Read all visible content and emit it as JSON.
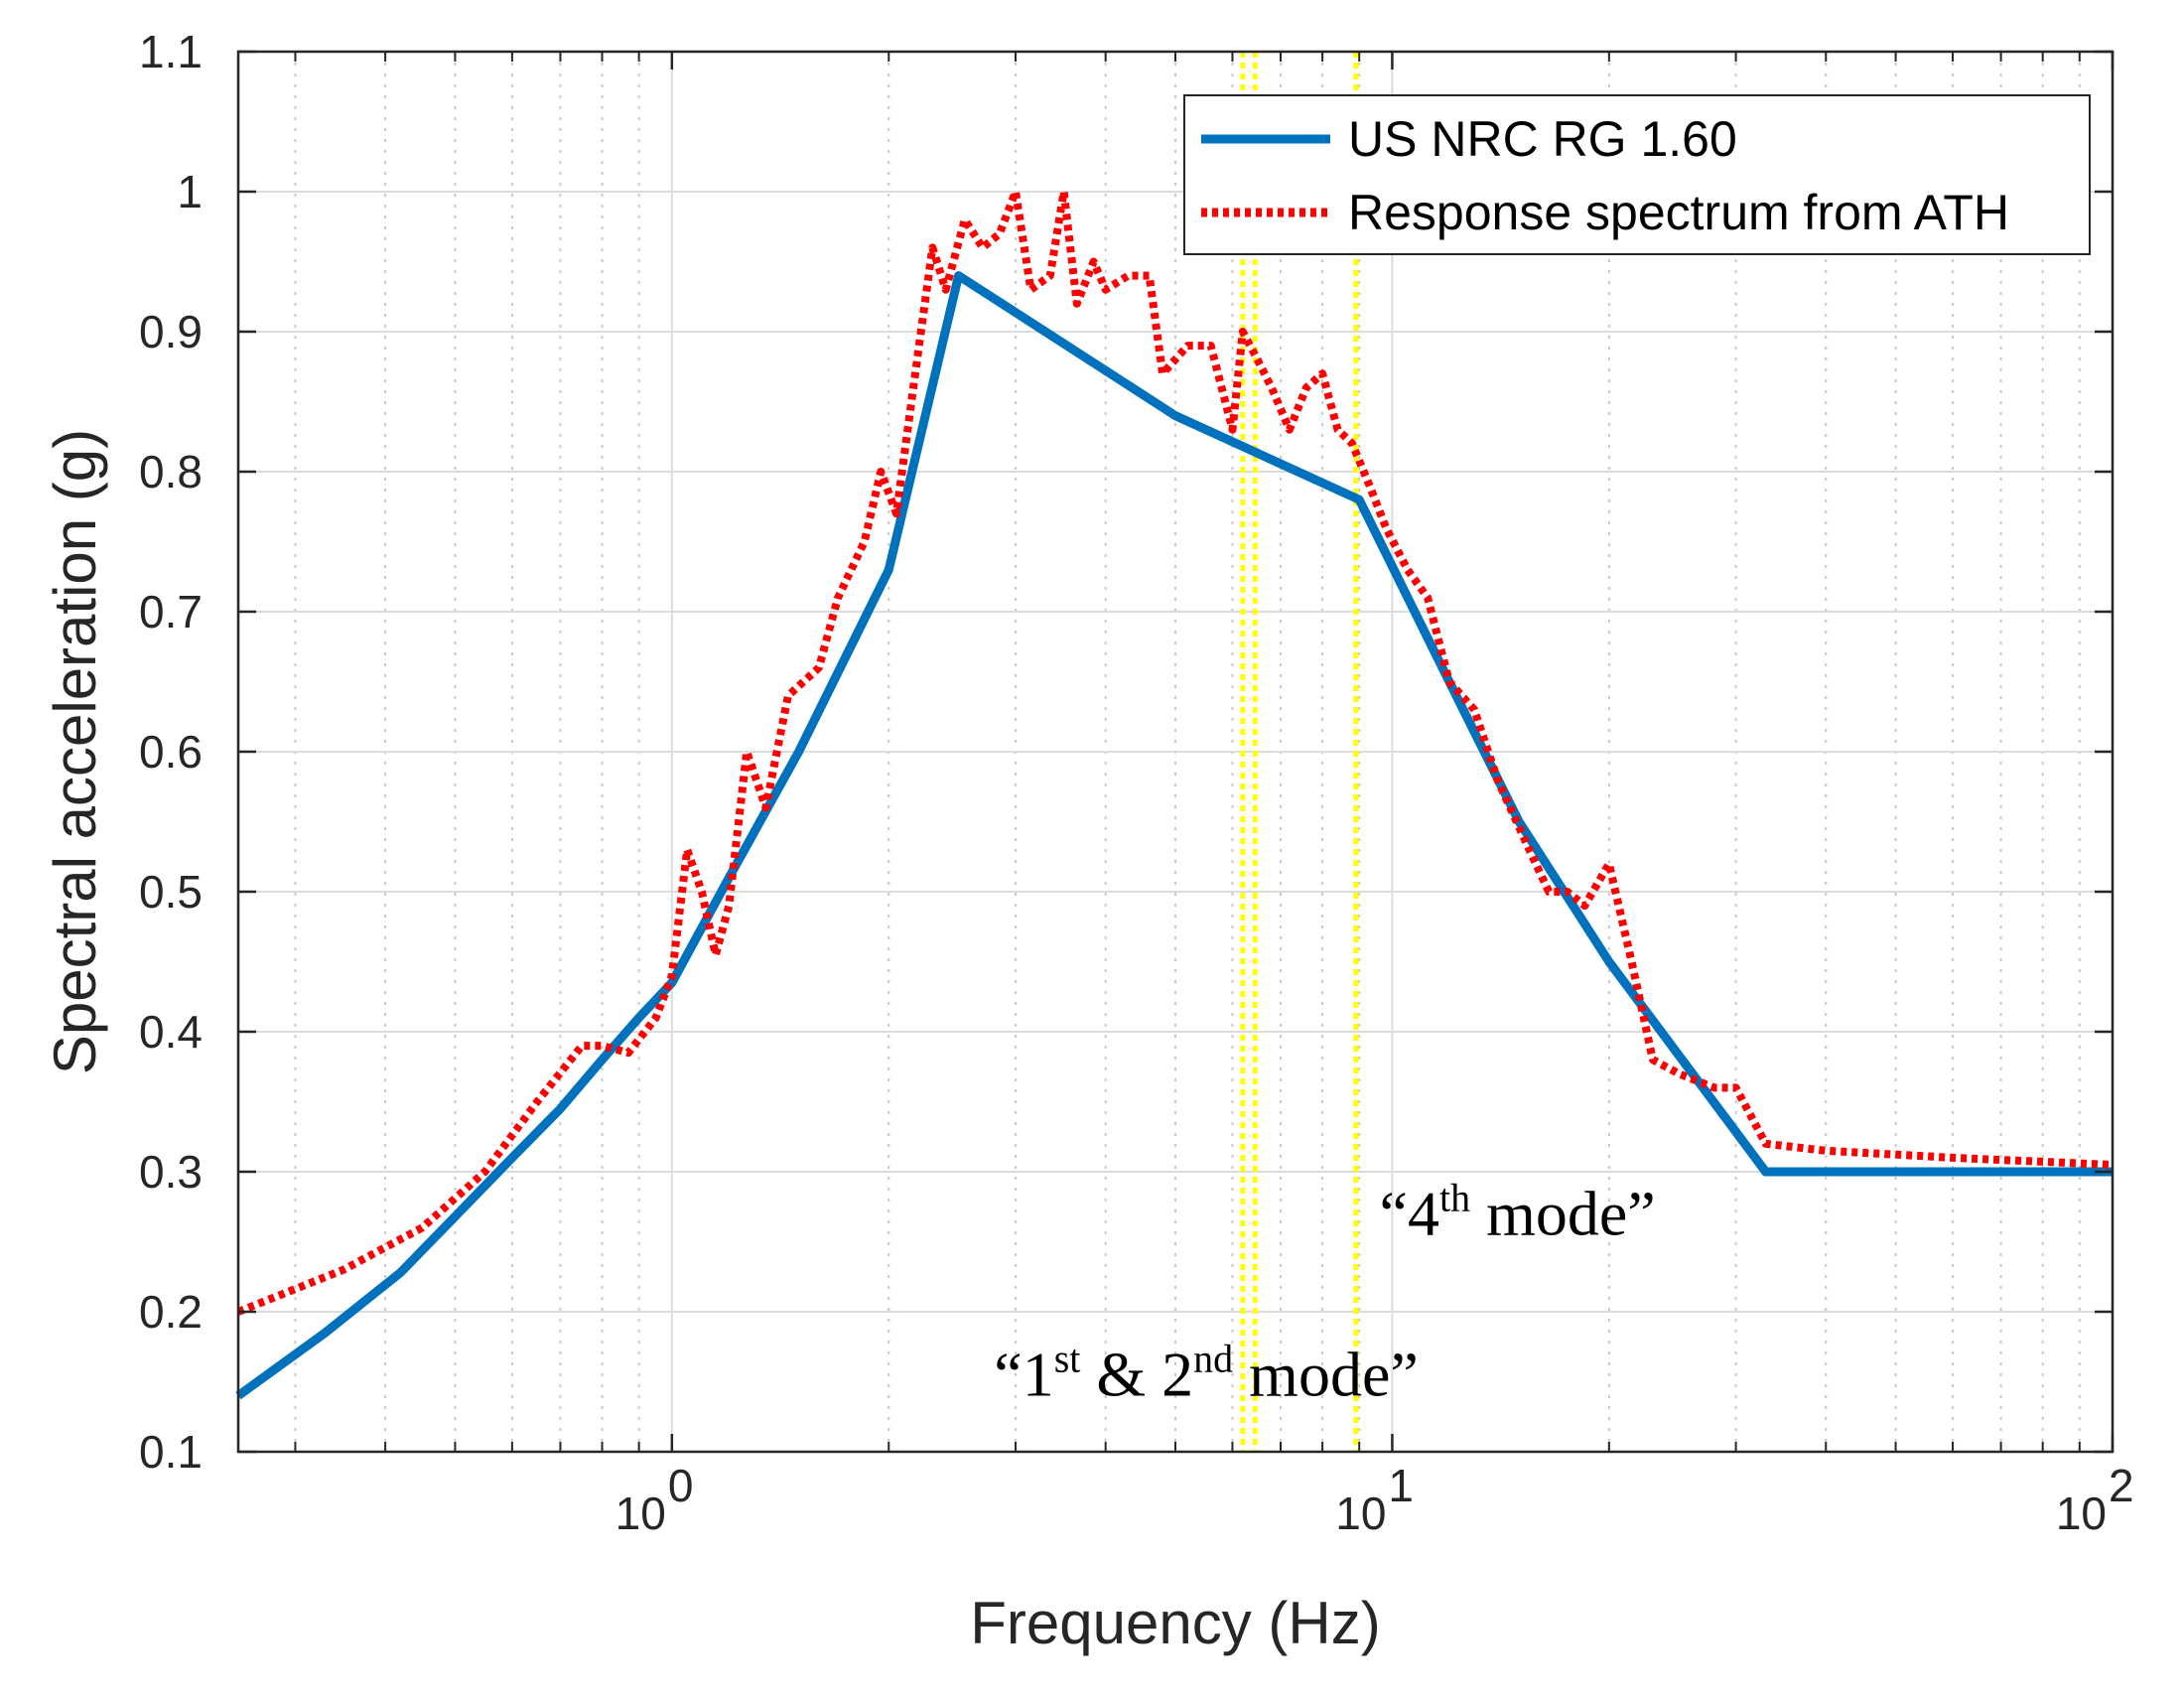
{
  "chart_data": {
    "type": "line",
    "xscale": "log",
    "xlim": [
      0.25,
      100
    ],
    "ylim": [
      0.1,
      1.1
    ],
    "xlabel": "Frequency (Hz)",
    "ylabel": "Spectral acceleration (g)",
    "grid": true,
    "legend_position": "top-right",
    "x_ticks": [
      {
        "value": 1,
        "base": "10",
        "exp": "0"
      },
      {
        "value": 10,
        "base": "10",
        "exp": "1"
      },
      {
        "value": 100,
        "base": "10",
        "exp": "2"
      }
    ],
    "y_ticks": [
      {
        "value": 0.1,
        "label": "0.1"
      },
      {
        "value": 0.2,
        "label": "0.2"
      },
      {
        "value": 0.3,
        "label": "0.3"
      },
      {
        "value": 0.4,
        "label": "0.4"
      },
      {
        "value": 0.5,
        "label": "0.5"
      },
      {
        "value": 0.6,
        "label": "0.6"
      },
      {
        "value": 0.7,
        "label": "0.7"
      },
      {
        "value": 0.8,
        "label": "0.8"
      },
      {
        "value": 0.9,
        "label": "0.9"
      },
      {
        "value": 1.0,
        "label": "1"
      },
      {
        "value": 1.1,
        "label": "1.1"
      }
    ],
    "series": [
      {
        "name": "US NRC RG 1.60",
        "color": "#0072bd",
        "style": "solid",
        "points": [
          [
            0.25,
            0.14
          ],
          [
            0.33,
            0.185
          ],
          [
            0.42,
            0.228
          ],
          [
            0.5,
            0.268
          ],
          [
            0.6,
            0.31
          ],
          [
            0.7,
            0.345
          ],
          [
            0.8,
            0.38
          ],
          [
            0.9,
            0.41
          ],
          [
            1.0,
            0.435
          ],
          [
            1.2,
            0.51
          ],
          [
            1.5,
            0.6
          ],
          [
            2.0,
            0.73
          ],
          [
            2.5,
            0.94
          ],
          [
            5.0,
            0.84
          ],
          [
            9.0,
            0.78
          ],
          [
            12.0,
            0.65
          ],
          [
            15.0,
            0.55
          ],
          [
            20.0,
            0.45
          ],
          [
            33.0,
            0.3
          ],
          [
            100.0,
            0.3
          ]
        ]
      },
      {
        "name": "Response spectrum from ATH",
        "color": "#ff0000",
        "style": "dotted",
        "points": [
          [
            0.25,
            0.2
          ],
          [
            0.35,
            0.23
          ],
          [
            0.45,
            0.26
          ],
          [
            0.55,
            0.3
          ],
          [
            0.65,
            0.35
          ],
          [
            0.75,
            0.39
          ],
          [
            0.8,
            0.39
          ],
          [
            0.87,
            0.385
          ],
          [
            0.95,
            0.41
          ],
          [
            1.0,
            0.44
          ],
          [
            1.05,
            0.53
          ],
          [
            1.1,
            0.5
          ],
          [
            1.15,
            0.455
          ],
          [
            1.2,
            0.49
          ],
          [
            1.27,
            0.6
          ],
          [
            1.35,
            0.56
          ],
          [
            1.45,
            0.64
          ],
          [
            1.6,
            0.66
          ],
          [
            1.7,
            0.71
          ],
          [
            1.85,
            0.75
          ],
          [
            1.95,
            0.8
          ],
          [
            2.05,
            0.77
          ],
          [
            2.15,
            0.85
          ],
          [
            2.3,
            0.96
          ],
          [
            2.4,
            0.93
          ],
          [
            2.55,
            0.98
          ],
          [
            2.7,
            0.96
          ],
          [
            2.85,
            0.97
          ],
          [
            3.0,
            1.0
          ],
          [
            3.15,
            0.93
          ],
          [
            3.35,
            0.94
          ],
          [
            3.5,
            1.0
          ],
          [
            3.65,
            0.92
          ],
          [
            3.85,
            0.95
          ],
          [
            4.0,
            0.93
          ],
          [
            4.3,
            0.94
          ],
          [
            4.6,
            0.94
          ],
          [
            4.8,
            0.87
          ],
          [
            5.2,
            0.89
          ],
          [
            5.6,
            0.89
          ],
          [
            6.0,
            0.83
          ],
          [
            6.2,
            0.9
          ],
          [
            6.5,
            0.88
          ],
          [
            6.8,
            0.86
          ],
          [
            7.2,
            0.83
          ],
          [
            7.6,
            0.86
          ],
          [
            8.0,
            0.87
          ],
          [
            8.4,
            0.83
          ],
          [
            8.8,
            0.82
          ],
          [
            9.3,
            0.79
          ],
          [
            9.8,
            0.76
          ],
          [
            10.5,
            0.73
          ],
          [
            11.2,
            0.71
          ],
          [
            12.0,
            0.65
          ],
          [
            13.0,
            0.63
          ],
          [
            14.0,
            0.58
          ],
          [
            15.5,
            0.53
          ],
          [
            16.5,
            0.5
          ],
          [
            17.5,
            0.5
          ],
          [
            18.5,
            0.49
          ],
          [
            20.0,
            0.52
          ],
          [
            21.5,
            0.45
          ],
          [
            23.0,
            0.38
          ],
          [
            25.0,
            0.37
          ],
          [
            28.0,
            0.36
          ],
          [
            30.0,
            0.36
          ],
          [
            33.0,
            0.32
          ],
          [
            40.0,
            0.315
          ],
          [
            60.0,
            0.31
          ],
          [
            100.0,
            0.305
          ]
        ]
      }
    ],
    "vertical_lines": [
      {
        "name": "mode-1",
        "x": 6.2,
        "color": "#ffff00"
      },
      {
        "name": "mode-2",
        "x": 6.45,
        "color": "#ffff00"
      },
      {
        "name": "mode-4",
        "x": 8.9,
        "color": "#ffff00"
      }
    ],
    "legend": [
      {
        "label": "US NRC RG 1.60"
      },
      {
        "label": "Response spectrum from ATH"
      }
    ],
    "annotations": [
      {
        "id": "modes-1-2",
        "x": 2.8,
        "y": 0.14,
        "parts": [
          {
            "text": "“1",
            "sup": false
          },
          {
            "text": "st",
            "sup": true
          },
          {
            "text": " & 2",
            "sup": false
          },
          {
            "text": "nd",
            "sup": true
          },
          {
            "text": " mode”",
            "sup": false
          }
        ]
      },
      {
        "id": "mode-4",
        "x": 9.6,
        "y": 0.255,
        "parts": [
          {
            "text": "“4",
            "sup": false
          },
          {
            "text": "th",
            "sup": true
          },
          {
            "text": " mode”",
            "sup": false
          }
        ]
      }
    ]
  }
}
